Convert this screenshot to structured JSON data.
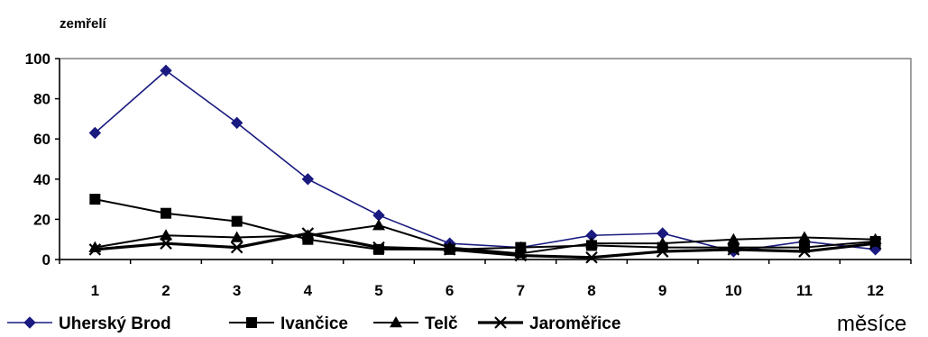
{
  "chart_data": {
    "type": "line",
    "title": "",
    "ylabel": "zemřelí",
    "xlabel": "měsíce",
    "categories": [
      "1",
      "2",
      "3",
      "4",
      "5",
      "6",
      "7",
      "8",
      "9",
      "10",
      "11",
      "12"
    ],
    "ylim": [
      0,
      100
    ],
    "yticks": [
      "0",
      "20",
      "40",
      "60",
      "80",
      "100"
    ],
    "grid": false,
    "legend_position": "bottom",
    "series": [
      {
        "name": "Uherský Brod",
        "color": "#1a1a80",
        "marker": "diamond",
        "values": [
          63,
          94,
          68,
          40,
          22,
          8,
          6,
          12,
          13,
          4,
          9,
          5
        ]
      },
      {
        "name": "Ivančice",
        "color": "#000000",
        "marker": "square",
        "values": [
          30,
          23,
          19,
          10,
          5,
          5,
          6,
          7,
          6,
          6,
          6,
          9
        ]
      },
      {
        "name": "Telč",
        "color": "#000000",
        "marker": "triangle",
        "values": [
          6,
          12,
          11,
          12,
          17,
          6,
          3,
          8,
          8,
          10,
          11,
          10
        ]
      },
      {
        "name": "Jaroměřice",
        "color": "#000000",
        "marker": "x",
        "values": [
          5,
          8,
          6,
          13,
          6,
          5,
          2,
          1,
          4,
          5,
          4,
          8
        ]
      }
    ]
  }
}
